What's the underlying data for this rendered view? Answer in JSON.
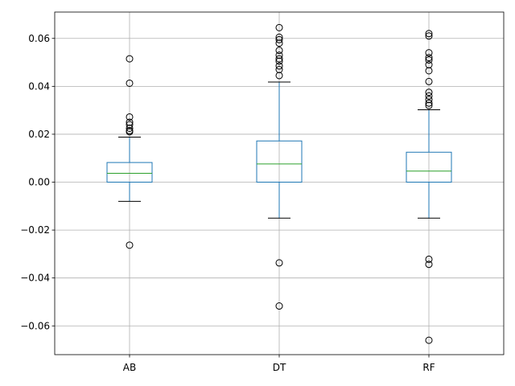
{
  "chart_data": {
    "type": "box",
    "title": "",
    "xlabel": "",
    "ylabel": "",
    "ylim": [
      -0.072,
      0.071
    ],
    "yticks": [
      -0.06,
      -0.04,
      -0.02,
      0.0,
      0.02,
      0.04,
      0.06
    ],
    "ytick_labels": [
      "−0.06",
      "−0.04",
      "−0.02",
      "0.00",
      "0.02",
      "0.04",
      "0.06"
    ],
    "grid": true,
    "categories": [
      "AB",
      "DT",
      "RF"
    ],
    "boxes": [
      {
        "name": "AB",
        "q1": 0.0,
        "median": 0.0037,
        "q3": 0.0082,
        "whisker_low": -0.008,
        "whisker_high": 0.0188,
        "outliers": [
          0.0515,
          0.0413,
          0.0272,
          0.025,
          0.024,
          0.0225,
          0.0215,
          0.021,
          -0.0263
        ]
      },
      {
        "name": "DT",
        "q1": 0.0,
        "median": 0.0076,
        "q3": 0.0172,
        "whisker_low": -0.015,
        "whisker_high": 0.0418,
        "outliers": [
          0.0645,
          0.0605,
          0.0595,
          0.058,
          0.055,
          0.053,
          0.0515,
          0.0505,
          0.0485,
          0.047,
          0.0445,
          -0.0337,
          -0.0517
        ]
      },
      {
        "name": "RF",
        "q1": 0.0,
        "median": 0.0046,
        "q3": 0.0125,
        "whisker_low": -0.015,
        "whisker_high": 0.0302,
        "outliers": [
          0.062,
          0.061,
          0.054,
          0.052,
          0.051,
          0.049,
          0.0465,
          0.042,
          0.0375,
          0.036,
          0.0345,
          0.033,
          0.032,
          -0.0322,
          -0.0343,
          -0.066
        ]
      }
    ],
    "colors": {
      "box": "#1f77b4",
      "median": "#2ca02c",
      "whisker": "#1f77b4",
      "cap": "#000000",
      "outlier": "#000000",
      "grid": "#b0b0b0",
      "axes": "#000000"
    }
  }
}
